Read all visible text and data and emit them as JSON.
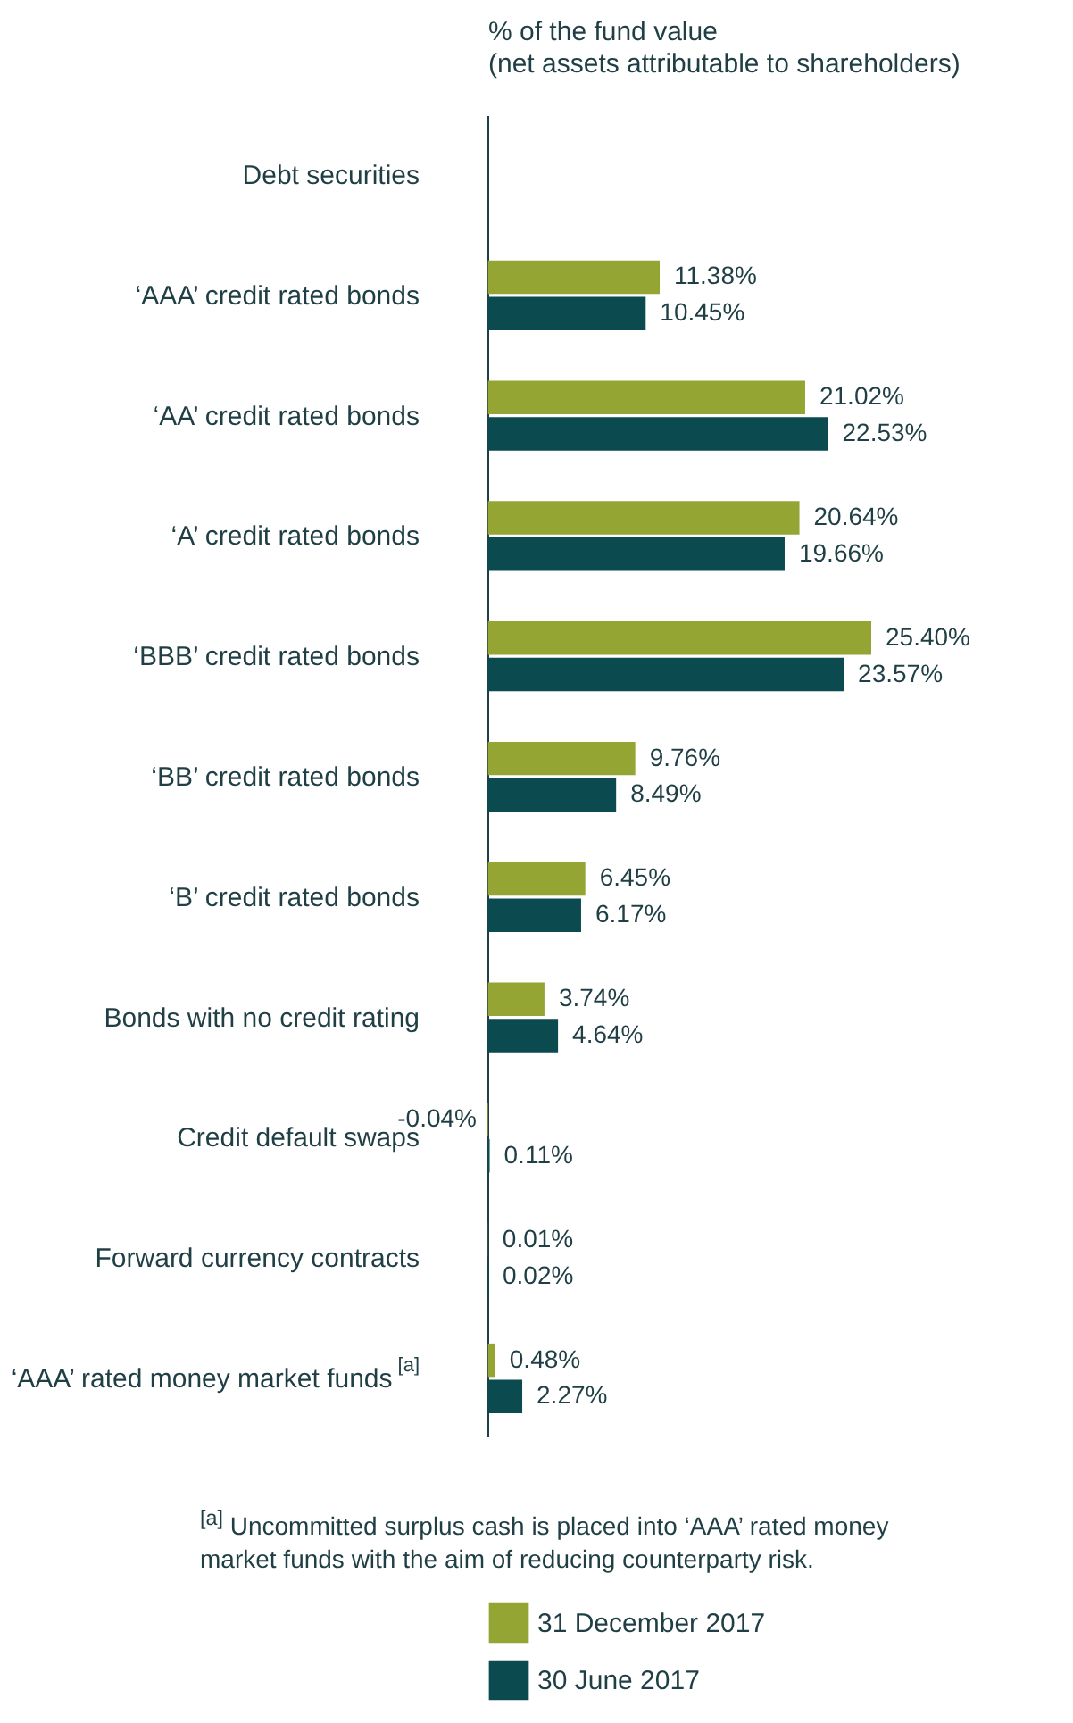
{
  "chart_data": {
    "type": "bar",
    "orientation": "horizontal",
    "xlabel": "% of the fund value\n(net assets attributable to shareholders)",
    "categories": [
      "Debt securities",
      "‘AAA’ credit rated bonds",
      "‘AA’ credit rated bonds",
      "‘A’ credit rated bonds",
      "‘BBB’ credit rated bonds",
      "‘BB’ credit rated bonds",
      "‘B’ credit rated bonds",
      "Bonds with no credit rating",
      "Credit default swaps",
      "Forward currency contracts",
      "‘AAA’ rated money market funds $^{[a]}$"
    ],
    "series": [
      {
        "name": "31 December 2017",
        "color": "#94a534",
        "values": [
          null,
          11.38,
          21.02,
          20.64,
          25.4,
          9.76,
          6.45,
          3.74,
          -0.04,
          0.01,
          0.48
        ],
        "value_labels": [
          null,
          "11.38%",
          "21.02%",
          "20.64%",
          "25.40%",
          "9.76%",
          "6.45%",
          "3.74%",
          "-0.04%",
          "0.01%",
          "0.48%"
        ]
      },
      {
        "name": "30 June 2017",
        "color": "#0b4a4f",
        "values": [
          null,
          10.45,
          22.53,
          19.66,
          23.57,
          8.49,
          6.17,
          4.64,
          0.11,
          0.02,
          2.27
        ],
        "value_labels": [
          null,
          "10.45%",
          "22.53%",
          "19.66%",
          "23.57%",
          "8.49%",
          "6.17%",
          "4.64%",
          "0.11%",
          "0.02%",
          "2.27%"
        ]
      }
    ],
    "tick_labels": "y",
    "legend": "bottom left",
    "annotations": [
      "$^{[a]}$ Uncommitted surplus cash is placed into ‘AAA’ rated money market funds with the aim of reducing counterparty risk."
    ]
  }
}
